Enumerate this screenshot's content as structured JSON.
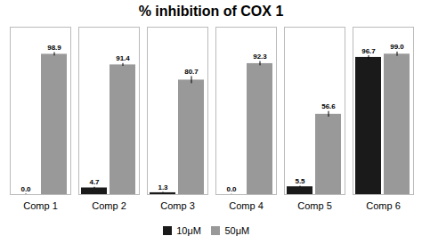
{
  "chart_data": {
    "type": "bar",
    "title": "% inhibition of COX 1",
    "categories": [
      "Comp 1",
      "Comp 2",
      "Comp 3",
      "Comp 4",
      "Comp 5",
      "Comp 6"
    ],
    "series": [
      {
        "name": "10μM",
        "color": "#1a1a1a",
        "values": [
          0.0,
          4.7,
          1.3,
          0.0,
          5.5,
          96.7
        ],
        "value_labels": [
          "0.0",
          "4.7",
          "1.3",
          "0.0",
          "5.5",
          "96.7"
        ],
        "errors": [
          0.4,
          0.5,
          0.3,
          0.2,
          0.4,
          1.2
        ]
      },
      {
        "name": "50μM",
        "color": "#999999",
        "values": [
          98.9,
          91.4,
          80.7,
          92.3,
          56.6,
          99.0
        ],
        "value_labels": [
          "98.9",
          "91.4",
          "80.7",
          "92.3",
          "56.6",
          "99.0"
        ],
        "errors": [
          1.2,
          1.0,
          2.5,
          1.5,
          2.0,
          1.5
        ]
      }
    ],
    "ylim": [
      0,
      118
    ],
    "yticks": [],
    "tick_labels": "x",
    "grid": false,
    "legend": "bottom",
    "data_labels": true
  }
}
